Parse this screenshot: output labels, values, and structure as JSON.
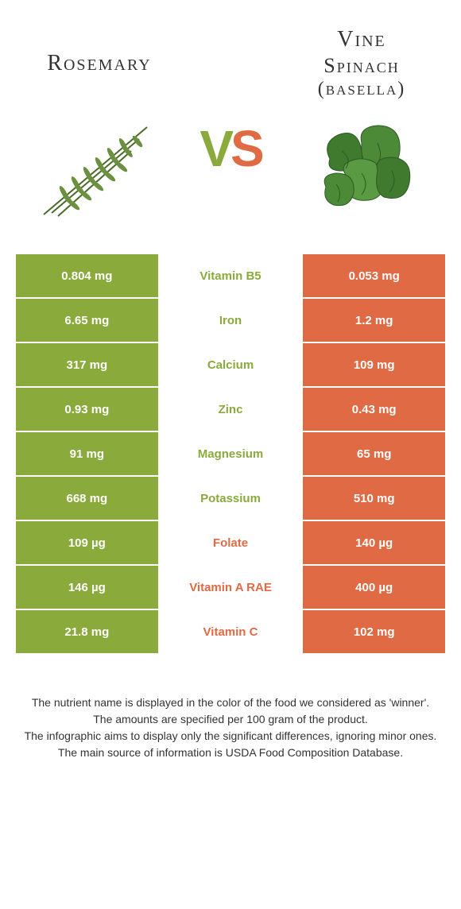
{
  "colors": {
    "green": "#8aaa3b",
    "orange": "#e06a44",
    "white": "#ffffff"
  },
  "header": {
    "left_title": "Rosemary",
    "right_title_l1": "Vine",
    "right_title_l2": "Spinach",
    "right_title_l3": "(basella)",
    "vs_v": "V",
    "vs_s": "S"
  },
  "nutrients": [
    {
      "name": "Vitamin B5",
      "left": "0.804 mg",
      "right": "0.053 mg",
      "winner": "left"
    },
    {
      "name": "Iron",
      "left": "6.65 mg",
      "right": "1.2 mg",
      "winner": "left"
    },
    {
      "name": "Calcium",
      "left": "317 mg",
      "right": "109 mg",
      "winner": "left"
    },
    {
      "name": "Zinc",
      "left": "0.93 mg",
      "right": "0.43 mg",
      "winner": "left"
    },
    {
      "name": "Magnesium",
      "left": "91 mg",
      "right": "65 mg",
      "winner": "left"
    },
    {
      "name": "Potassium",
      "left": "668 mg",
      "right": "510 mg",
      "winner": "left"
    },
    {
      "name": "Folate",
      "left": "109 µg",
      "right": "140 µg",
      "winner": "right"
    },
    {
      "name": "Vitamin A RAE",
      "left": "146 µg",
      "right": "400 µg",
      "winner": "right"
    },
    {
      "name": "Vitamin C",
      "left": "21.8 mg",
      "right": "102 mg",
      "winner": "right"
    }
  ],
  "footer": {
    "p1": "The nutrient name is displayed in the color of the food we considered as 'winner'.",
    "p2": "The amounts are specified per 100 gram of the product.",
    "p3": "The infographic aims to display only the significant differences, ignoring minor ones.",
    "p4": "The main source of information is USDA Food Composition Database."
  }
}
